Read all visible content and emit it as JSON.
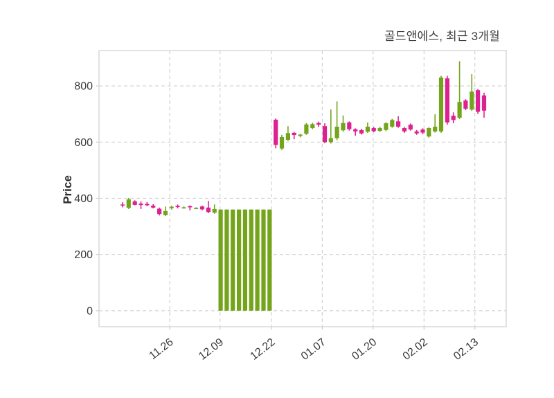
{
  "chart_data": {
    "type": "candlestick",
    "title": "골드앤에스, 최근 3개월",
    "ylabel": "Price",
    "xlabel": "",
    "grid": true,
    "legend": "none",
    "ylim": [
      -57,
      926
    ],
    "y_ticks": [
      0,
      200,
      400,
      600,
      800
    ],
    "x_ticks": [
      {
        "label": "11.26",
        "pos": 7.7
      },
      {
        "label": "12.09",
        "pos": 15.9
      },
      {
        "label": "12.22",
        "pos": 24.3
      },
      {
        "label": "01.07",
        "pos": 32.6
      },
      {
        "label": "01.20",
        "pos": 40.9
      },
      {
        "label": "02.02",
        "pos": 49.2
      },
      {
        "label": "02.13",
        "pos": 57.5
      }
    ],
    "colors": {
      "up": "#74a41c",
      "down": "#de2190",
      "grid": "#d2d2d2",
      "border": "#d8d8d8",
      "text": "#3a3a3a"
    },
    "candles_format": [
      "open",
      "high",
      "low",
      "close"
    ],
    "candles": [
      [
        378,
        386,
        368,
        374
      ],
      [
        366,
        401,
        362,
        396
      ],
      [
        389,
        393,
        375,
        377
      ],
      [
        381,
        389,
        362,
        376
      ],
      [
        380,
        387,
        372,
        375
      ],
      [
        374,
        379,
        364,
        367
      ],
      [
        363,
        367,
        339,
        344
      ],
      [
        340,
        371,
        337,
        355
      ],
      [
        365,
        374,
        360,
        370
      ],
      [
        373,
        378,
        364,
        369
      ],
      [
        366,
        371,
        363,
        368
      ],
      [
        372,
        375,
        357,
        368
      ],
      [
        364,
        368,
        361,
        366
      ],
      [
        371,
        374,
        357,
        361
      ],
      [
        367,
        391,
        347,
        351
      ],
      [
        349,
        378,
        345,
        362
      ],
      [
        0,
        360,
        0,
        360
      ],
      [
        0,
        360,
        0,
        360
      ],
      [
        0,
        360,
        0,
        360
      ],
      [
        0,
        360,
        0,
        360
      ],
      [
        0,
        360,
        0,
        360
      ],
      [
        0,
        360,
        0,
        360
      ],
      [
        0,
        360,
        0,
        360
      ],
      [
        0,
        360,
        0,
        360
      ],
      [
        0,
        360,
        0,
        360
      ],
      [
        680,
        684,
        578,
        590
      ],
      [
        577,
        626,
        572,
        618
      ],
      [
        608,
        657,
        604,
        632
      ],
      [
        633,
        636,
        610,
        625
      ],
      [
        622,
        629,
        617,
        627
      ],
      [
        630,
        668,
        626,
        663
      ],
      [
        650,
        669,
        646,
        664
      ],
      [
        668,
        673,
        654,
        662
      ],
      [
        657,
        667,
        596,
        600
      ],
      [
        600,
        716,
        595,
        614
      ],
      [
        614,
        745,
        607,
        655
      ],
      [
        642,
        695,
        637,
        668
      ],
      [
        670,
        674,
        641,
        646
      ],
      [
        646,
        649,
        623,
        638
      ],
      [
        643,
        647,
        627,
        631
      ],
      [
        637,
        670,
        633,
        655
      ],
      [
        650,
        654,
        635,
        639
      ],
      [
        640,
        655,
        636,
        650
      ],
      [
        643,
        671,
        639,
        667
      ],
      [
        655,
        683,
        651,
        679
      ],
      [
        674,
        692,
        651,
        655
      ],
      [
        650,
        654,
        633,
        638
      ],
      [
        662,
        666,
        641,
        645
      ],
      [
        638,
        643,
        626,
        631
      ],
      [
        645,
        649,
        629,
        634
      ],
      [
        620,
        653,
        616,
        650
      ],
      [
        638,
        699,
        634,
        655
      ],
      [
        638,
        836,
        633,
        830
      ],
      [
        827,
        836,
        662,
        670
      ],
      [
        694,
        706,
        667,
        679
      ],
      [
        687,
        888,
        682,
        743
      ],
      [
        748,
        753,
        714,
        719
      ],
      [
        716,
        842,
        711,
        780
      ],
      [
        785,
        789,
        700,
        708
      ],
      [
        766,
        776,
        687,
        712
      ]
    ]
  }
}
